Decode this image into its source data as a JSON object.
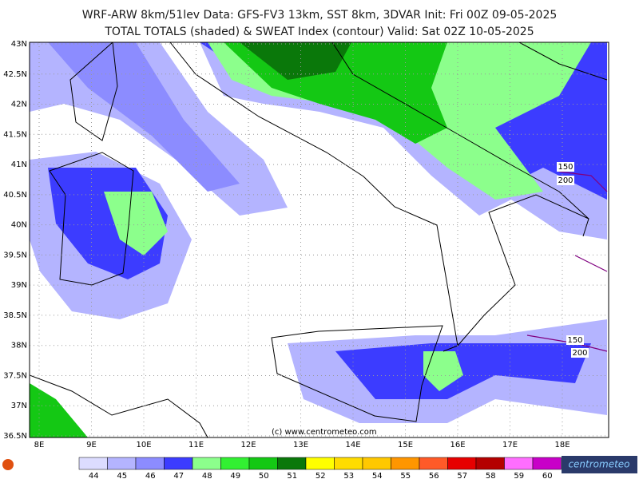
{
  "header": {
    "line1": "WRF-ARW 8km/51lev  Data: GFS-FV3 13km, SST 8km, 3DVAR  Init: Fri 00Z 09-05-2025",
    "line2": "TOTAL TOTALS (shaded) & SWEAT Index (contour)  Valid: Sat 02Z 10-05-2025"
  },
  "map": {
    "lat_labels": [
      "43N",
      "42.5N",
      "42N",
      "41.5N",
      "41N",
      "40.5N",
      "40N",
      "39.5N",
      "39N",
      "38.5N",
      "38N",
      "37.5N",
      "37N",
      "36.5N"
    ],
    "lon_labels": [
      "8E",
      "9E",
      "10E",
      "11E",
      "12E",
      "13E",
      "14E",
      "15E",
      "16E",
      "17E",
      "18E"
    ],
    "contour_labels": [
      "150",
      "200",
      "150",
      "200"
    ],
    "watermark": "(c) www.centrometeo.com"
  },
  "legend": {
    "items": [
      {
        "label": "44",
        "color": "#dcdcff"
      },
      {
        "label": "45",
        "color": "#b4b4ff"
      },
      {
        "label": "46",
        "color": "#8c8cff"
      },
      {
        "label": "47",
        "color": "#3c3cff"
      },
      {
        "label": "48",
        "color": "#8cff8c"
      },
      {
        "label": "49",
        "color": "#32f032"
      },
      {
        "label": "50",
        "color": "#14c814"
      },
      {
        "label": "51",
        "color": "#0a780a"
      },
      {
        "label": "52",
        "color": "#ffff00"
      },
      {
        "label": "53",
        "color": "#ffdc00"
      },
      {
        "label": "54",
        "color": "#ffc800"
      },
      {
        "label": "55",
        "color": "#ff9600"
      },
      {
        "label": "56",
        "color": "#ff5a28"
      },
      {
        "label": "57",
        "color": "#e60000"
      },
      {
        "label": "58",
        "color": "#b40000"
      },
      {
        "label": "59",
        "color": "#ff6eff"
      },
      {
        "label": "60",
        "color": "#c800c8"
      }
    ]
  },
  "logos": {
    "right": "centrometeo"
  }
}
